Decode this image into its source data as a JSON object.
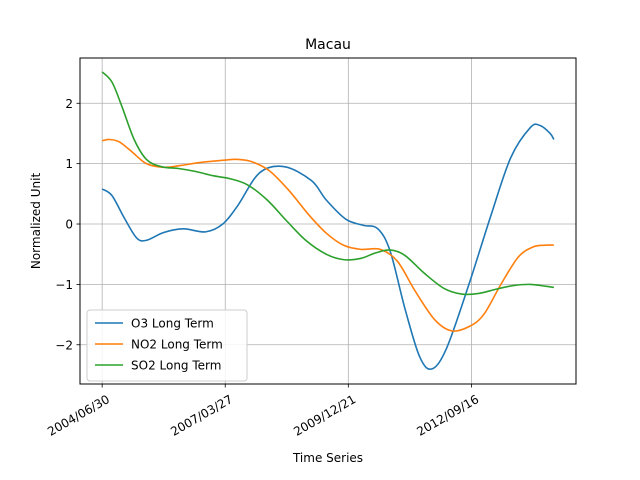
{
  "chart_data": {
    "type": "line",
    "title": "Macau",
    "xlabel": "Time Series",
    "ylabel": "Normalized Unit",
    "grid": true,
    "legend_position": "lower-left",
    "x_ticks": [
      {
        "value": 0,
        "label": "2004/06/30"
      },
      {
        "value": 1,
        "label": "2007/03/27"
      },
      {
        "value": 2,
        "label": "2009/12/21"
      },
      {
        "value": 3,
        "label": "2012/09/16"
      }
    ],
    "xlim": [
      -0.18,
      3.85
    ],
    "ylim": [
      -2.65,
      2.75
    ],
    "y_ticks": [
      {
        "value": -2,
        "label": "−2"
      },
      {
        "value": -1,
        "label": "−1"
      },
      {
        "value": 0,
        "label": "0"
      },
      {
        "value": 1,
        "label": "1"
      },
      {
        "value": 2,
        "label": "2"
      }
    ],
    "series": [
      {
        "name": "O3 Long Term",
        "color": "#1f77b4",
        "points": [
          [
            0.0,
            0.58
          ],
          [
            0.08,
            0.47
          ],
          [
            0.18,
            0.1
          ],
          [
            0.28,
            -0.23
          ],
          [
            0.36,
            -0.27
          ],
          [
            0.5,
            -0.14
          ],
          [
            0.66,
            -0.08
          ],
          [
            0.84,
            -0.13
          ],
          [
            0.98,
            0.0
          ],
          [
            1.1,
            0.3
          ],
          [
            1.28,
            0.85
          ],
          [
            1.48,
            0.95
          ],
          [
            1.7,
            0.72
          ],
          [
            1.82,
            0.4
          ],
          [
            1.98,
            0.08
          ],
          [
            2.12,
            -0.02
          ],
          [
            2.24,
            -0.08
          ],
          [
            2.34,
            -0.45
          ],
          [
            2.46,
            -1.4
          ],
          [
            2.58,
            -2.2
          ],
          [
            2.68,
            -2.4
          ],
          [
            2.8,
            -2.05
          ],
          [
            2.98,
            -1.0
          ],
          [
            3.16,
            0.15
          ],
          [
            3.32,
            1.1
          ],
          [
            3.48,
            1.6
          ],
          [
            3.56,
            1.63
          ],
          [
            3.64,
            1.5
          ],
          [
            3.67,
            1.4
          ]
        ]
      },
      {
        "name": "NO2 Long Term",
        "color": "#ff7f0e",
        "points": [
          [
            0.0,
            1.38
          ],
          [
            0.06,
            1.4
          ],
          [
            0.14,
            1.36
          ],
          [
            0.24,
            1.2
          ],
          [
            0.36,
            1.0
          ],
          [
            0.5,
            0.94
          ],
          [
            0.64,
            0.97
          ],
          [
            0.8,
            1.02
          ],
          [
            1.0,
            1.06
          ],
          [
            1.1,
            1.07
          ],
          [
            1.22,
            1.03
          ],
          [
            1.36,
            0.88
          ],
          [
            1.52,
            0.55
          ],
          [
            1.68,
            0.15
          ],
          [
            1.82,
            -0.15
          ],
          [
            1.96,
            -0.35
          ],
          [
            2.1,
            -0.42
          ],
          [
            2.26,
            -0.42
          ],
          [
            2.4,
            -0.62
          ],
          [
            2.54,
            -1.1
          ],
          [
            2.7,
            -1.58
          ],
          [
            2.84,
            -1.77
          ],
          [
            2.98,
            -1.7
          ],
          [
            3.1,
            -1.5
          ],
          [
            3.24,
            -1.0
          ],
          [
            3.38,
            -0.55
          ],
          [
            3.5,
            -0.38
          ],
          [
            3.6,
            -0.35
          ],
          [
            3.67,
            -0.35
          ]
        ]
      },
      {
        "name": "SO2 Long Term",
        "color": "#2ca02c",
        "points": [
          [
            0.0,
            2.52
          ],
          [
            0.08,
            2.35
          ],
          [
            0.16,
            1.95
          ],
          [
            0.26,
            1.4
          ],
          [
            0.36,
            1.07
          ],
          [
            0.48,
            0.95
          ],
          [
            0.62,
            0.92
          ],
          [
            0.76,
            0.87
          ],
          [
            0.9,
            0.8
          ],
          [
            1.04,
            0.75
          ],
          [
            1.18,
            0.65
          ],
          [
            1.34,
            0.4
          ],
          [
            1.5,
            0.05
          ],
          [
            1.66,
            -0.28
          ],
          [
            1.82,
            -0.5
          ],
          [
            1.96,
            -0.59
          ],
          [
            2.1,
            -0.57
          ],
          [
            2.22,
            -0.48
          ],
          [
            2.34,
            -0.43
          ],
          [
            2.46,
            -0.52
          ],
          [
            2.62,
            -0.82
          ],
          [
            2.78,
            -1.07
          ],
          [
            2.92,
            -1.16
          ],
          [
            3.06,
            -1.15
          ],
          [
            3.2,
            -1.08
          ],
          [
            3.34,
            -1.02
          ],
          [
            3.48,
            -1.0
          ],
          [
            3.6,
            -1.03
          ],
          [
            3.67,
            -1.05
          ]
        ]
      }
    ]
  }
}
